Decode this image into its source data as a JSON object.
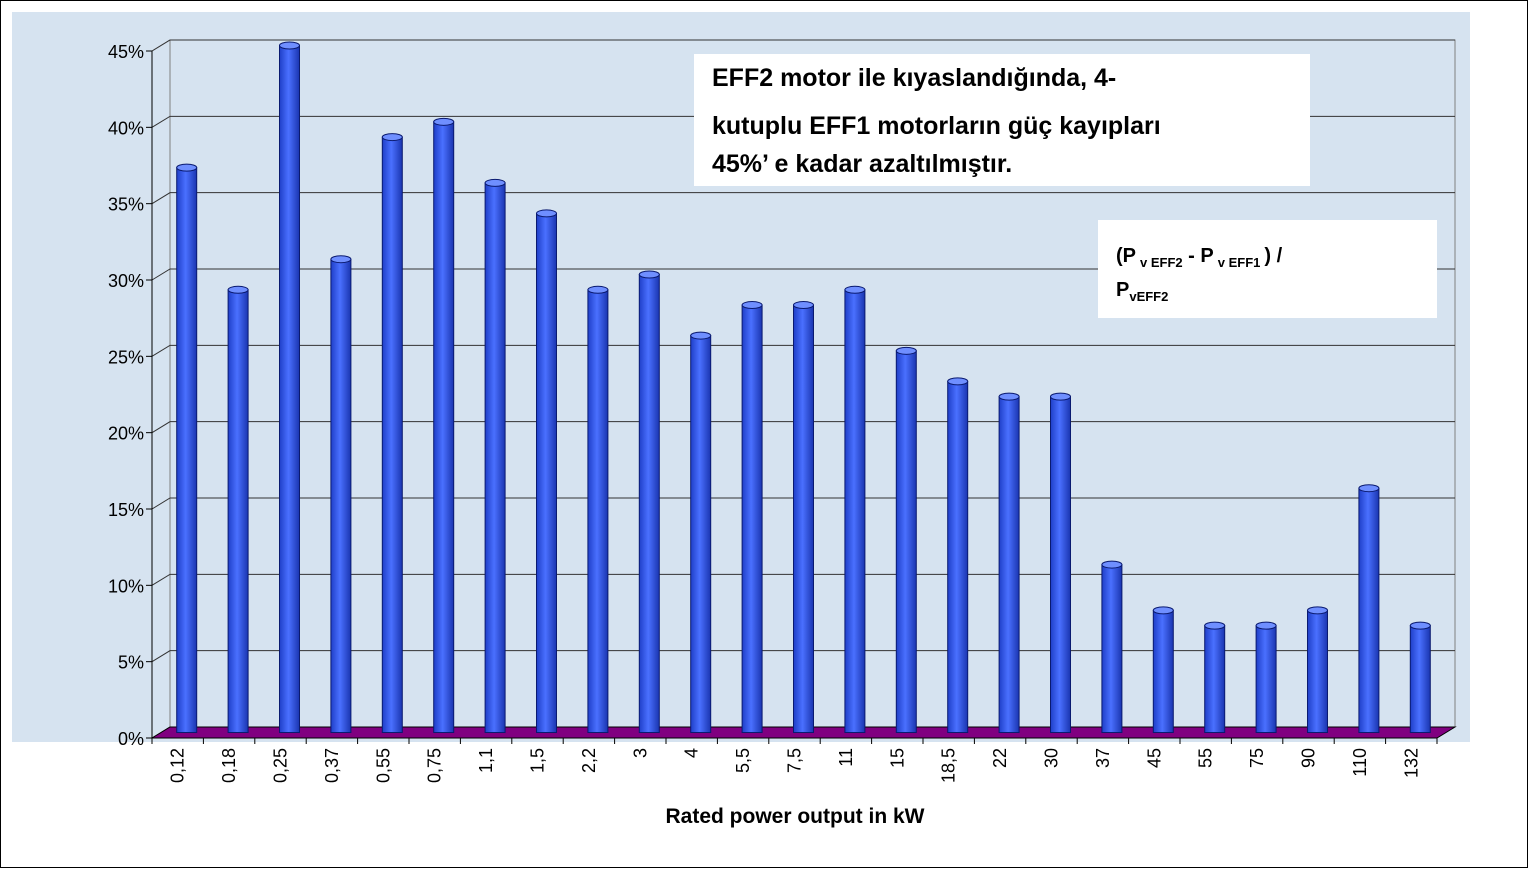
{
  "chart_data": {
    "type": "bar3d",
    "categories": [
      "0,12",
      "0,18",
      "0,25",
      "0,37",
      "0,55",
      "0,75",
      "1,1",
      "1,5",
      "2,2",
      "3",
      "4",
      "5,5",
      "7,5",
      "11",
      "15",
      "18,5",
      "22",
      "30",
      "37",
      "45",
      "55",
      "75",
      "90",
      "110",
      "132"
    ],
    "values": [
      37,
      29,
      45,
      31,
      39,
      40,
      36,
      34,
      29,
      30,
      26,
      28,
      28,
      29,
      25,
      23,
      22,
      22,
      11,
      8,
      7,
      7,
      8,
      16,
      7
    ],
    "color": "#3a5ff0",
    "floor_color": "#800080",
    "ylim": [
      0,
      45
    ],
    "yticks": [
      {
        "value": 0,
        "label": "0%"
      },
      {
        "value": 5,
        "label": "5%"
      },
      {
        "value": 10,
        "label": "10%"
      },
      {
        "value": 15,
        "label": "15%"
      },
      {
        "value": 20,
        "label": "20%"
      },
      {
        "value": 25,
        "label": "25%"
      },
      {
        "value": 30,
        "label": "30%"
      },
      {
        "value": 35,
        "label": "35%"
      },
      {
        "value": 40,
        "label": "40%"
      },
      {
        "value": 45,
        "label": "45%"
      }
    ],
    "grid": true,
    "x_label": "Rated power output in kW",
    "annotation": {
      "lines": [
        "EFF2 motor ile kıyaslandığında, 4-",
        "kutuplu EFF1 motorların güç kayıpları",
        "45%’ e kadar azaltılmıştır."
      ]
    },
    "formula": {
      "parts": [
        "(P",
        "v EFF2",
        " - P",
        "v EFF1",
        ") /",
        "P",
        "vEFF2"
      ]
    }
  }
}
